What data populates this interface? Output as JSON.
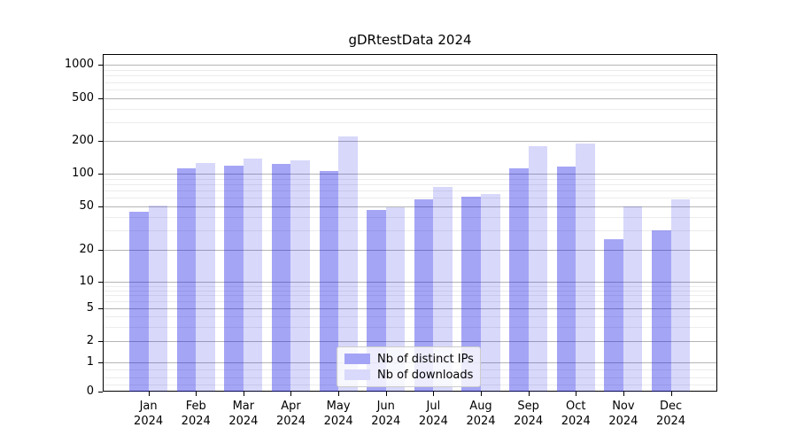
{
  "title": "gDRtestData 2024",
  "chart_data": {
    "type": "bar",
    "title": "gDRtestData 2024",
    "categories": [
      "Jan",
      "Feb",
      "Mar",
      "Apr",
      "May",
      "Jun",
      "Jul",
      "Aug",
      "Sep",
      "Oct",
      "Nov",
      "Dec"
    ],
    "category_year": "2024",
    "series": [
      {
        "name": "Nb of distinct IPs",
        "color": "#a4a4f6",
        "fill": "rgba(10,10,230,0.37)",
        "values": [
          45,
          112,
          118,
          123,
          105,
          46,
          58,
          61,
          111,
          117,
          25,
          30
        ]
      },
      {
        "name": "Nb of downloads",
        "color": "#d9d9fb",
        "fill": "rgba(10,10,230,0.16)",
        "values": [
          51,
          125,
          137,
          133,
          220,
          49,
          76,
          65,
          179,
          188,
          50,
          58
        ]
      }
    ],
    "yticks": [
      "0",
      "1",
      "2",
      "5",
      "10",
      "20",
      "50",
      "100",
      "200",
      "500",
      "1000"
    ],
    "ytick_values": [
      0,
      1,
      2,
      5,
      10,
      20,
      50,
      100,
      200,
      500,
      1000
    ],
    "yscale": "symlog",
    "ylim": [
      0,
      1300
    ],
    "grid": true,
    "legend_position": "lower center",
    "colors": {
      "major_grid": "#b5b5b5",
      "minor_grid": "#ececec",
      "axis": "#000000",
      "background": "#ffffff"
    }
  },
  "legend": {
    "items": [
      {
        "label": "Nb of distinct IPs"
      },
      {
        "label": "Nb of downloads"
      }
    ]
  }
}
